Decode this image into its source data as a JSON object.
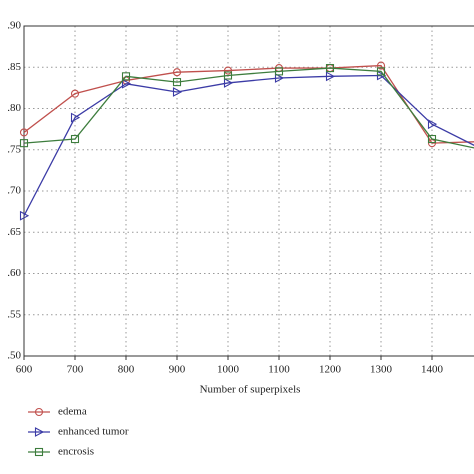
{
  "chart_data": {
    "type": "line",
    "x_label": "Number of superpixels",
    "x": [
      600,
      700,
      800,
      900,
      1000,
      1100,
      1200,
      1300,
      1400,
      1500
    ],
    "xlim": [
      600,
      1500
    ],
    "xticks": [
      600,
      700,
      800,
      900,
      1000,
      1100,
      1200,
      1300,
      1400
    ],
    "ylim": [
      0.5,
      0.9
    ],
    "yticks": [
      {
        "value": 0.5,
        "label": ".50"
      },
      {
        "value": 0.55,
        "label": ".55"
      },
      {
        "value": 0.6,
        "label": ".60"
      },
      {
        "value": 0.65,
        "label": ".65"
      },
      {
        "value": 0.7,
        "label": ".70"
      },
      {
        "value": 0.75,
        "label": ".75"
      },
      {
        "value": 0.8,
        "label": ".80"
      },
      {
        "value": 0.85,
        "label": ".85"
      },
      {
        "value": 0.9,
        "label": ".90"
      }
    ],
    "grid": true,
    "legend": "bottom-left",
    "series": [
      {
        "name": "edema",
        "color": "#c0504d",
        "marker": "circle",
        "values": [
          0.771,
          0.818,
          0.834,
          0.844,
          0.846,
          0.849,
          0.849,
          0.852,
          0.758,
          0.76
        ]
      },
      {
        "name": "enhanced tumor",
        "color": "#3b3ba6",
        "marker": "triangle",
        "values": [
          0.67,
          0.789,
          0.83,
          0.82,
          0.831,
          0.837,
          0.839,
          0.84,
          0.781,
          0.75
        ]
      },
      {
        "name": "encrosis",
        "color": "#3d7d3d",
        "marker": "square",
        "values": [
          0.758,
          0.763,
          0.839,
          0.832,
          0.84,
          0.845,
          0.849,
          0.845,
          0.763,
          0.75
        ]
      }
    ]
  }
}
